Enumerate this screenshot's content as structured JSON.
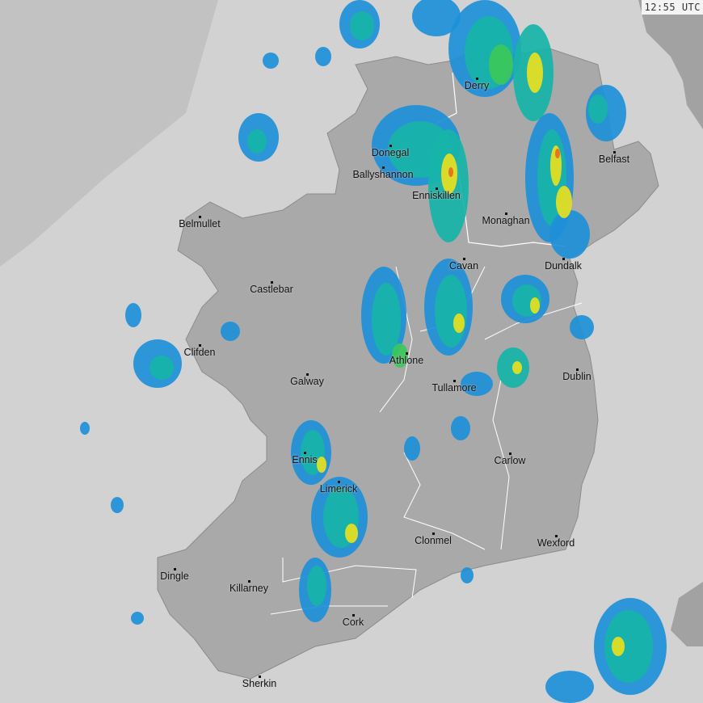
{
  "timestamp": "12:55 UTC",
  "colors": {
    "sea": "#d2d2d2",
    "outside_coverage": "#c2c2c2",
    "land": "#a9a9a9",
    "other_land": "#a2a2a2",
    "border": "#ffffff",
    "radar_light": "#1e90d8",
    "radar_mid": "#17b4a8",
    "radar_strong": "#3cc85a",
    "radar_heavy": "#e8e020",
    "radar_extreme": "#e86a20"
  },
  "cities": [
    {
      "name": "Derry"
    },
    {
      "name": "Donegal"
    },
    {
      "name": "Ballyshannon"
    },
    {
      "name": "Enniskillen"
    },
    {
      "name": "Monaghan"
    },
    {
      "name": "Belfast"
    },
    {
      "name": "Belmullet"
    },
    {
      "name": "Cavan"
    },
    {
      "name": "Dundalk"
    },
    {
      "name": "Castlebar"
    },
    {
      "name": "Clifden"
    },
    {
      "name": "Athlone"
    },
    {
      "name": "Galway"
    },
    {
      "name": "Tullamore"
    },
    {
      "name": "Dublin"
    },
    {
      "name": "Ennis"
    },
    {
      "name": "Carlow"
    },
    {
      "name": "Limerick"
    },
    {
      "name": "Clonmel"
    },
    {
      "name": "Wexford"
    },
    {
      "name": "Dingle"
    },
    {
      "name": "Killarney"
    },
    {
      "name": "Cork"
    },
    {
      "name": "Sherkin"
    }
  ]
}
